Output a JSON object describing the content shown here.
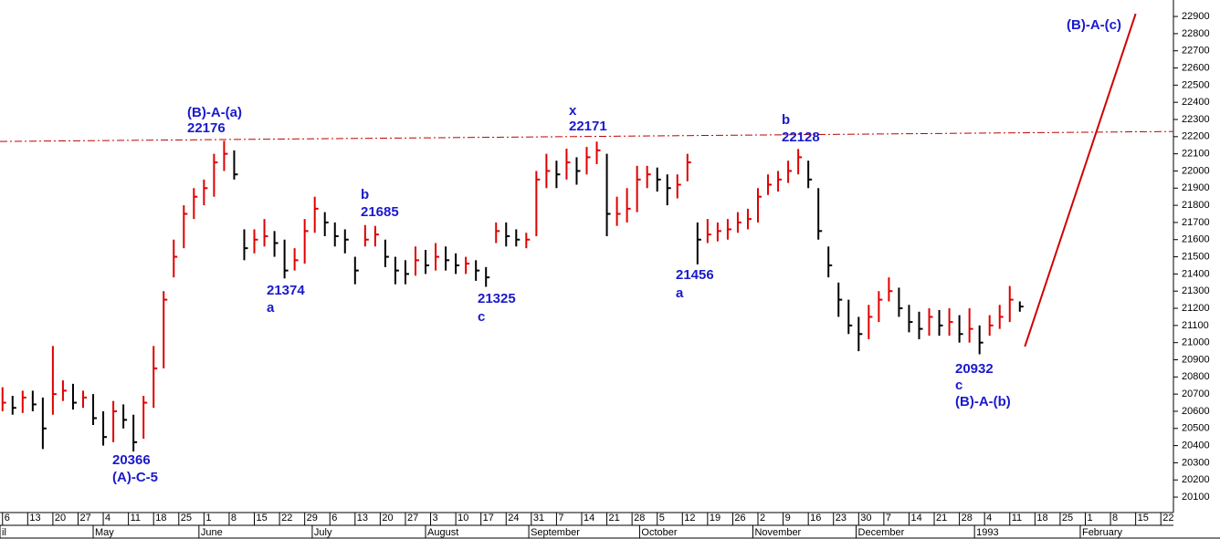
{
  "chart_data": {
    "type": "ohlc",
    "up_color": "#e00000",
    "down_color": "#000000",
    "xlim": [
      -0.1,
      46.5
    ],
    "ylim": [
      20010,
      22996
    ],
    "yticks": [
      20100,
      20200,
      20300,
      20400,
      20500,
      20600,
      20700,
      20800,
      20900,
      21000,
      21100,
      21200,
      21300,
      21400,
      21500,
      21600,
      21700,
      21800,
      21900,
      22000,
      22100,
      22200,
      22300,
      22400,
      22500,
      22600,
      22700,
      22800,
      22900
    ],
    "xticks": [
      {
        "value": 0,
        "label": "6"
      },
      {
        "value": 1,
        "label": "13"
      },
      {
        "value": 2,
        "label": "20"
      },
      {
        "value": 3,
        "label": "27"
      },
      {
        "value": 4,
        "label": "4"
      },
      {
        "value": 5,
        "label": "11"
      },
      {
        "value": 6,
        "label": "18"
      },
      {
        "value": 7,
        "label": "25"
      },
      {
        "value": 8,
        "label": "1"
      },
      {
        "value": 9,
        "label": "8"
      },
      {
        "value": 10,
        "label": "15"
      },
      {
        "value": 11,
        "label": "22"
      },
      {
        "value": 12,
        "label": "29"
      },
      {
        "value": 13,
        "label": "6"
      },
      {
        "value": 14,
        "label": "13"
      },
      {
        "value": 15,
        "label": "20"
      },
      {
        "value": 16,
        "label": "27"
      },
      {
        "value": 17,
        "label": "3"
      },
      {
        "value": 18,
        "label": "10"
      },
      {
        "value": 19,
        "label": "17"
      },
      {
        "value": 20,
        "label": "24"
      },
      {
        "value": 21,
        "label": "31"
      },
      {
        "value": 22,
        "label": "7"
      },
      {
        "value": 23,
        "label": "14"
      },
      {
        "value": 24,
        "label": "21"
      },
      {
        "value": 25,
        "label": "28"
      },
      {
        "value": 26,
        "label": "5"
      },
      {
        "value": 27,
        "label": "12"
      },
      {
        "value": 28,
        "label": "19"
      },
      {
        "value": 29,
        "label": "26"
      },
      {
        "value": 30,
        "label": "2"
      },
      {
        "value": 31,
        "label": "9"
      },
      {
        "value": 32,
        "label": "16"
      },
      {
        "value": 33,
        "label": "23"
      },
      {
        "value": 34,
        "label": "30"
      },
      {
        "value": 35,
        "label": "7"
      },
      {
        "value": 36,
        "label": "14"
      },
      {
        "value": 37,
        "label": "21"
      },
      {
        "value": 38,
        "label": "28"
      },
      {
        "value": 39,
        "label": "4"
      },
      {
        "value": 40,
        "label": "11"
      },
      {
        "value": 41,
        "label": "18"
      },
      {
        "value": 42,
        "label": "25"
      },
      {
        "value": 43,
        "label": "1"
      },
      {
        "value": 44,
        "label": "8"
      },
      {
        "value": 45,
        "label": "15"
      },
      {
        "value": 46,
        "label": "22"
      }
    ],
    "months": [
      {
        "value": -0.1,
        "label": "il"
      },
      {
        "value": 3.6,
        "label": "May"
      },
      {
        "value": 7.8,
        "label": "June"
      },
      {
        "value": 12.3,
        "label": "July"
      },
      {
        "value": 16.8,
        "label": "August"
      },
      {
        "value": 20.9,
        "label": "September"
      },
      {
        "value": 25.3,
        "label": "October"
      },
      {
        "value": 29.8,
        "label": "November"
      },
      {
        "value": 33.9,
        "label": "December"
      },
      {
        "value": 38.6,
        "label": "1993"
      },
      {
        "value": 42.8,
        "label": "February"
      }
    ],
    "x": [
      0,
      0.4,
      0.8,
      1.2,
      1.6,
      2,
      2.4,
      2.8,
      3.2,
      3.6,
      4,
      4.4,
      4.8,
      5.2,
      5.6,
      6,
      6.4,
      6.8,
      7.2,
      7.6,
      8,
      8.4,
      8.8,
      9.2,
      9.6,
      10,
      10.4,
      10.8,
      11.2,
      11.6,
      12,
      12.4,
      12.8,
      13.2,
      13.6,
      14,
      14.4,
      14.8,
      15.2,
      15.6,
      16,
      16.4,
      16.8,
      17.2,
      17.6,
      18,
      18.4,
      18.8,
      19.2,
      19.6,
      20,
      20.4,
      20.8,
      21.2,
      21.6,
      22,
      22.4,
      22.8,
      23.2,
      23.6,
      24,
      24.4,
      24.8,
      25.2,
      25.6,
      26,
      26.4,
      26.8,
      27.2,
      27.6,
      28,
      28.4,
      28.8,
      29.2,
      29.6,
      30,
      30.4,
      30.8,
      31.2,
      31.6,
      32,
      32.4,
      32.8,
      33.2,
      33.6,
      34,
      34.4,
      34.8,
      35.2,
      35.6,
      36,
      36.4,
      36.8,
      37.2,
      37.6,
      38,
      38.4,
      38.8,
      39.2,
      39.6,
      40,
      40.4
    ],
    "high": [
      20740,
      20690,
      20720,
      20720,
      20680,
      20980,
      20780,
      20760,
      20720,
      20700,
      20600,
      20660,
      20640,
      20580,
      20690,
      20980,
      21300,
      21600,
      21800,
      21900,
      21950,
      22100,
      22176,
      22120,
      21660,
      21660,
      21720,
      21650,
      21600,
      21550,
      21720,
      21850,
      21760,
      21700,
      21660,
      21500,
      21685,
      21680,
      21600,
      21500,
      21480,
      21560,
      21540,
      21580,
      21560,
      21520,
      21500,
      21480,
      21440,
      21700,
      21700,
      21660,
      21640,
      22000,
      22100,
      22060,
      22130,
      22080,
      22140,
      22171,
      22100,
      21850,
      21900,
      22030,
      22030,
      22020,
      21980,
      21980,
      22100,
      21700,
      21720,
      21700,
      21720,
      21760,
      21780,
      21900,
      21980,
      22000,
      22060,
      22128,
      22060,
      21900,
      21560,
      21350,
      21250,
      21150,
      21220,
      21300,
      21380,
      21320,
      21220,
      21180,
      21200,
      21190,
      21200,
      21160,
      21200,
      21100,
      21160,
      21220,
      21330,
      21240
    ],
    "low": [
      20600,
      20580,
      20590,
      20600,
      20380,
      20580,
      20660,
      20610,
      20620,
      20520,
      20400,
      20420,
      20500,
      20366,
      20440,
      20620,
      20850,
      21380,
      21550,
      21720,
      21800,
      21850,
      22000,
      21950,
      21480,
      21520,
      21560,
      21500,
      21374,
      21420,
      21460,
      21640,
      21620,
      21560,
      21520,
      21340,
      21560,
      21560,
      21440,
      21340,
      21340,
      21390,
      21400,
      21420,
      21420,
      21400,
      21400,
      21360,
      21325,
      21580,
      21560,
      21560,
      21550,
      21620,
      21900,
      21900,
      21950,
      21920,
      21980,
      22040,
      21620,
      21680,
      21700,
      21760,
      21900,
      21880,
      21800,
      21840,
      21940,
      21456,
      21580,
      21590,
      21600,
      21640,
      21660,
      21700,
      21860,
      21880,
      21930,
      21980,
      21900,
      21600,
      21380,
      21150,
      21050,
      20950,
      21020,
      21120,
      21240,
      21150,
      21060,
      21020,
      21040,
      21040,
      21040,
      21000,
      21000,
      20932,
      21040,
      21080,
      21120,
      21180
    ],
    "close": [
      20650,
      20620,
      20680,
      20640,
      20500,
      20700,
      20720,
      20650,
      20680,
      20560,
      20450,
      20600,
      20550,
      20420,
      20650,
      20850,
      21250,
      21500,
      21750,
      21850,
      21900,
      22050,
      22100,
      21980,
      21550,
      21600,
      21620,
      21580,
      21420,
      21480,
      21650,
      21780,
      21700,
      21620,
      21600,
      21420,
      21600,
      21630,
      21500,
      21420,
      21400,
      21480,
      21450,
      21500,
      21480,
      21450,
      21460,
      21420,
      21380,
      21650,
      21620,
      21600,
      21600,
      21950,
      22000,
      21980,
      22050,
      22000,
      22080,
      22120,
      21750,
      21750,
      21780,
      21950,
      21980,
      21950,
      21900,
      21920,
      22050,
      21600,
      21630,
      21650,
      21660,
      21700,
      21720,
      21850,
      21920,
      21950,
      22000,
      22080,
      21950,
      21650,
      21450,
      21250,
      21100,
      21050,
      21150,
      21250,
      21300,
      21200,
      21120,
      21080,
      21150,
      21100,
      21120,
      21050,
      21080,
      21000,
      21100,
      21150,
      21250,
      21210
    ],
    "resistance": {
      "color": "#c00000",
      "x": [
        -0.1,
        46.5
      ],
      "y": [
        22172,
        22230
      ]
    },
    "trendline": {
      "color": "#d00000",
      "x": [
        40.6,
        45.0
      ],
      "y": [
        20977,
        22916
      ]
    },
    "annotations": [
      "(B)-A-(a)",
      "22176",
      "b",
      "21685",
      "21374",
      "a",
      "21325",
      "c",
      "x",
      "22171",
      "21456",
      "a",
      "b",
      "22128",
      "20932",
      "c",
      "(B)-A-(b)",
      "20366",
      "(A)-C-5",
      "(B)-A-(c)"
    ]
  }
}
